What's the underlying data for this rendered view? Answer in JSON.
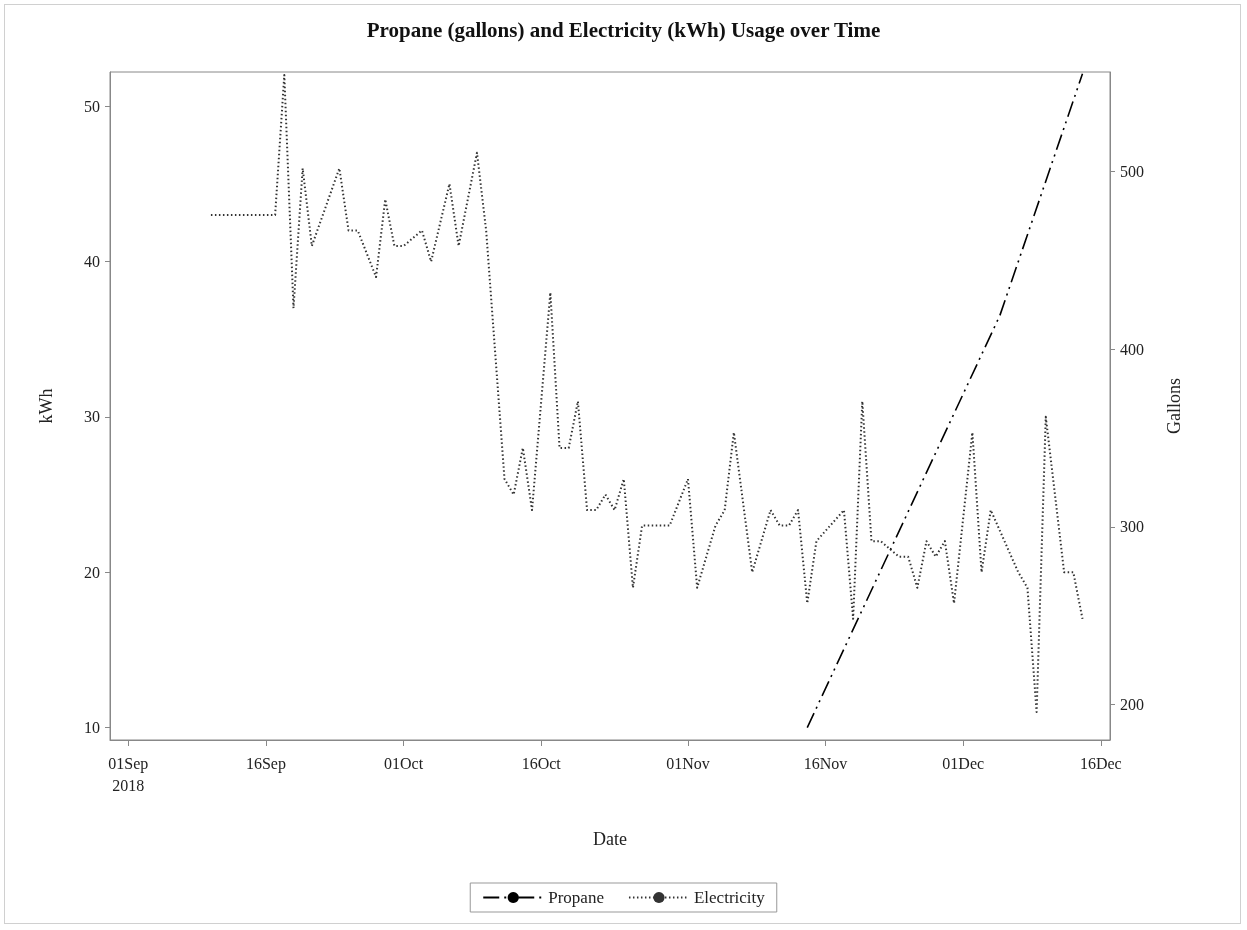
{
  "chart_data": {
    "type": "line",
    "title": "Propane (gallons) and Electricity (kWh) Usage over Time",
    "xlabel": "Date",
    "ylabel": "kWh",
    "y2label": "Gallons",
    "xlim": [
      "2018-08-30",
      "2018-12-17"
    ],
    "xticks": [
      {
        "value": "2018-09-01",
        "label": "01Sep\n2018"
      },
      {
        "value": "2018-09-16",
        "label": "16Sep"
      },
      {
        "value": "2018-10-01",
        "label": "01Oct"
      },
      {
        "value": "2018-10-16",
        "label": "16Oct"
      },
      {
        "value": "2018-11-01",
        "label": "01Nov"
      },
      {
        "value": "2018-11-16",
        "label": "16Nov"
      },
      {
        "value": "2018-12-01",
        "label": "01Dec"
      },
      {
        "value": "2018-12-16",
        "label": "16Dec"
      }
    ],
    "ylim": [
      9.2,
      52.2
    ],
    "yticks": [
      10,
      20,
      30,
      40,
      50
    ],
    "y2lim": [
      180,
      556
    ],
    "y2ticks": [
      200,
      300,
      400,
      500
    ],
    "grid": false,
    "legend": "bottom",
    "marker": "none",
    "series": [
      {
        "name": "Propane",
        "color": "#000000",
        "axis": "y2",
        "line_style": "dashed",
        "x": [
          "2018-11-14",
          "2018-12-05",
          "2018-12-14"
        ],
        "values": [
          187,
          419,
          555
        ]
      },
      {
        "name": "Electricity",
        "color": "#333333",
        "axis": "y",
        "line_style": "dotted",
        "x": [
          "2018-09-10",
          "2018-09-17",
          "2018-09-18",
          "2018-09-19",
          "2018-09-20",
          "2018-09-21",
          "2018-09-24",
          "2018-09-25",
          "2018-09-26",
          "2018-09-28",
          "2018-09-29",
          "2018-09-30",
          "2018-10-01",
          "2018-10-03",
          "2018-10-04",
          "2018-10-06",
          "2018-10-07",
          "2018-10-09",
          "2018-10-10",
          "2018-10-12",
          "2018-10-13",
          "2018-10-14",
          "2018-10-15",
          "2018-10-17",
          "2018-10-18",
          "2018-10-19",
          "2018-10-20",
          "2018-10-21",
          "2018-10-22",
          "2018-10-23",
          "2018-10-24",
          "2018-10-25",
          "2018-10-26",
          "2018-10-27",
          "2018-10-30",
          "2018-11-01",
          "2018-11-02",
          "2018-11-04",
          "2018-11-05",
          "2018-11-06",
          "2018-11-08",
          "2018-11-10",
          "2018-11-11",
          "2018-11-12",
          "2018-11-13",
          "2018-11-14",
          "2018-11-15",
          "2018-11-18",
          "2018-11-19",
          "2018-11-20",
          "2018-11-21",
          "2018-11-22",
          "2018-11-24",
          "2018-11-25",
          "2018-11-26",
          "2018-11-27",
          "2018-11-28",
          "2018-11-29",
          "2018-11-30",
          "2018-12-02",
          "2018-12-03",
          "2018-12-04",
          "2018-12-07",
          "2018-12-08",
          "2018-12-09",
          "2018-12-10",
          "2018-12-12",
          "2018-12-13",
          "2018-12-14"
        ],
        "values": [
          43,
          43,
          52,
          37,
          46,
          41,
          46,
          42,
          42,
          39,
          44,
          41,
          41,
          42,
          40,
          45,
          41,
          47,
          42,
          26,
          25,
          28,
          24,
          38,
          28,
          28,
          31,
          24,
          24,
          25,
          24,
          26,
          19,
          23,
          23,
          26,
          19,
          23,
          24,
          29,
          20,
          24,
          23,
          23,
          24,
          18,
          22,
          24,
          17,
          31,
          22,
          22,
          21,
          21,
          19,
          22,
          21,
          22,
          18,
          29,
          20,
          24,
          20,
          19,
          11,
          30,
          20,
          20,
          17
        ]
      }
    ]
  }
}
